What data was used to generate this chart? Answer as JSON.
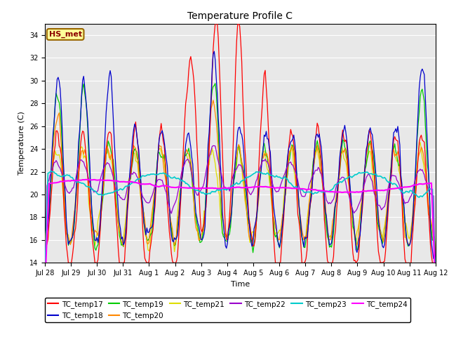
{
  "title": "Temperature Profile C",
  "xlabel": "Time",
  "ylabel": "Temperature (C)",
  "ylim": [
    14,
    35
  ],
  "yticks": [
    14,
    16,
    18,
    20,
    22,
    24,
    26,
    28,
    30,
    32,
    34
  ],
  "annotation_text": "HS_met",
  "annotation_color": "#8B0000",
  "annotation_bg": "#FFFF99",
  "background_color": "#E8E8E8",
  "series_colors": {
    "TC_temp17": "#FF0000",
    "TC_temp18": "#0000CC",
    "TC_temp19": "#00CC00",
    "TC_temp20": "#FF8800",
    "TC_temp21": "#DDDD00",
    "TC_temp22": "#9900CC",
    "TC_temp23": "#00CCCC",
    "TC_temp24": "#FF00FF"
  },
  "xtick_labels": [
    "Jul 28",
    "Jul 29",
    "Jul 30",
    "Jul 31",
    "Aug 1",
    "Aug 2",
    "Aug 3",
    "Aug 4",
    "Aug 5",
    "Aug 6",
    "Aug 7",
    "Aug 8",
    "Aug 9",
    "Aug 10",
    "Aug 11",
    "Aug 12"
  ],
  "legend_order": [
    "TC_temp17",
    "TC_temp18",
    "TC_temp19",
    "TC_temp20",
    "TC_temp21",
    "TC_temp22",
    "TC_temp23",
    "TC_temp24"
  ]
}
